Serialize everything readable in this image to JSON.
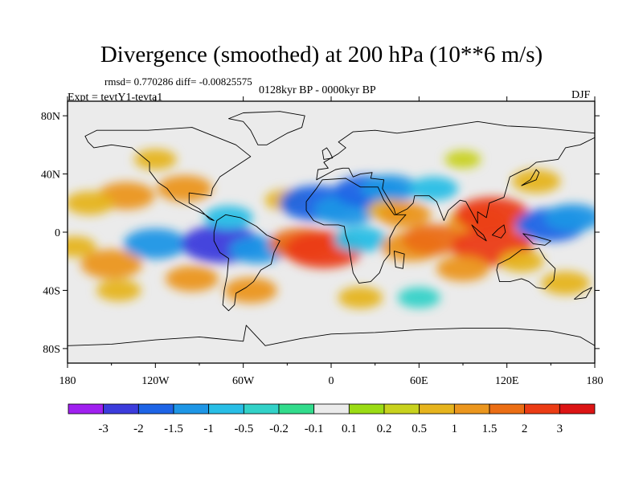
{
  "header": {
    "title": "Divergence (smoothed) at 200 hPa (10**6 m/s)",
    "stats": "rmsd= 0.770286 diff= -0.00825575",
    "period": "0128kyr BP - 0000kyr BP",
    "experiment": "Expt = tevtY1-tevta1",
    "season": "DJF"
  },
  "chart_data": {
    "type": "heatmap",
    "title": "Divergence (smoothed) at 200 hPa (10**6 m/s)",
    "variable": "200 hPa divergence difference (smoothed)",
    "units": "10**6 m/s",
    "x_axis": {
      "range": [
        -180,
        180
      ],
      "ticks": [
        "180",
        "120W",
        "60W",
        "0",
        "60E",
        "120E",
        "180"
      ],
      "tick_values": [
        -180,
        -120,
        -60,
        0,
        60,
        120,
        180
      ]
    },
    "y_axis": {
      "range": [
        -90,
        90
      ],
      "ticks": [
        "80N",
        "40N",
        "0",
        "40S",
        "80S"
      ],
      "tick_values": [
        80,
        40,
        0,
        -40,
        -80
      ]
    },
    "colorbar": {
      "labels": [
        "-3",
        "-2",
        "-1.5",
        "-1",
        "-0.5",
        "-0.2",
        "-0.1",
        "0.1",
        "0.2",
        "0.5",
        "1",
        "1.5",
        "2",
        "3"
      ],
      "levels": [
        -3,
        -2,
        -1.5,
        -1,
        -0.5,
        -0.2,
        -0.1,
        0.1,
        0.2,
        0.5,
        1,
        1.5,
        2,
        3
      ],
      "colors": [
        "#a020f0",
        "#3c3cdc",
        "#1e64e6",
        "#1e96e6",
        "#28bee6",
        "#32d2c8",
        "#32dc8c",
        "#ebebeb",
        "#9bdc14",
        "#c8d21e",
        "#e6b41e",
        "#eb961e",
        "#eb6e14",
        "#eb3c14",
        "#dc1414"
      ]
    },
    "features": [
      {
        "lon": -140,
        "lat": 25,
        "value": 1.2
      },
      {
        "lon": -165,
        "lat": 20,
        "value": 0.8
      },
      {
        "lon": -100,
        "lat": 30,
        "value": 1.1
      },
      {
        "lon": -120,
        "lat": 50,
        "value": 0.5
      },
      {
        "lon": -150,
        "lat": -22,
        "value": 1.4
      },
      {
        "lon": -145,
        "lat": -40,
        "value": 0.6
      },
      {
        "lon": -120,
        "lat": -8,
        "value": -1.5
      },
      {
        "lon": -95,
        "lat": -32,
        "value": 1.0
      },
      {
        "lon": -75,
        "lat": -8,
        "value": -2.3
      },
      {
        "lon": -70,
        "lat": 10,
        "value": -0.8
      },
      {
        "lon": -50,
        "lat": -12,
        "value": -1.2
      },
      {
        "lon": -55,
        "lat": -40,
        "value": 1.0
      },
      {
        "lon": -20,
        "lat": -8,
        "value": 1.6
      },
      {
        "lon": -5,
        "lat": -12,
        "value": 2.2
      },
      {
        "lon": -30,
        "lat": 22,
        "value": 0.6
      },
      {
        "lon": -10,
        "lat": 20,
        "value": -2.0
      },
      {
        "lon": 10,
        "lat": 15,
        "value": -1.5
      },
      {
        "lon": 25,
        "lat": 28,
        "value": -1.7
      },
      {
        "lon": 40,
        "lat": 30,
        "value": -1.2
      },
      {
        "lon": 40,
        "lat": 15,
        "value": 0.6
      },
      {
        "lon": 50,
        "lat": 12,
        "value": 1.0
      },
      {
        "lon": 70,
        "lat": 30,
        "value": -0.8
      },
      {
        "lon": 20,
        "lat": -5,
        "value": -1.0
      },
      {
        "lon": 55,
        "lat": -10,
        "value": 1.4
      },
      {
        "lon": 70,
        "lat": -5,
        "value": 1.5
      },
      {
        "lon": 100,
        "lat": 8,
        "value": 1.3
      },
      {
        "lon": 110,
        "lat": 12,
        "value": 2.0
      },
      {
        "lon": 110,
        "lat": -10,
        "value": 2.3
      },
      {
        "lon": 90,
        "lat": -25,
        "value": 1.0
      },
      {
        "lon": 130,
        "lat": -20,
        "value": 0.6
      },
      {
        "lon": 150,
        "lat": 5,
        "value": -1.8
      },
      {
        "lon": 165,
        "lat": 10,
        "value": -1.2
      },
      {
        "lon": 140,
        "lat": 35,
        "value": 0.8
      },
      {
        "lon": 160,
        "lat": -35,
        "value": 0.8
      },
      {
        "lon": -175,
        "lat": -10,
        "value": 0.5
      },
      {
        "lon": 20,
        "lat": -45,
        "value": 0.6
      },
      {
        "lon": 60,
        "lat": -45,
        "value": -0.5
      },
      {
        "lon": 90,
        "lat": 50,
        "value": 0.2
      }
    ]
  }
}
